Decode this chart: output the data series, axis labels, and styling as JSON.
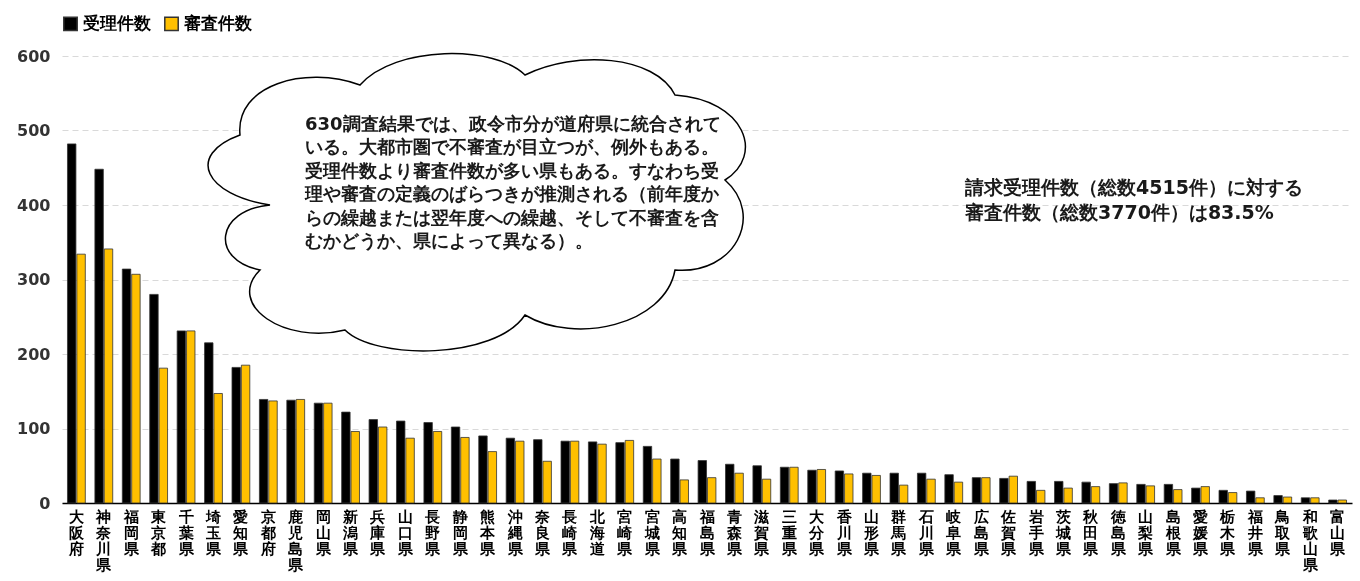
{
  "chart_data": {
    "type": "bar",
    "categories": [
      "大阪府",
      "神奈川県",
      "福岡県",
      "東京都",
      "千葉県",
      "埼玉県",
      "愛知県",
      "京都府",
      "鹿児島県",
      "岡山県",
      "新潟県",
      "兵庫県",
      "山口県",
      "長野県",
      "静岡県",
      "熊本県",
      "沖縄県",
      "奈良県",
      "長崎県",
      "北海道",
      "宮崎県",
      "宮城県",
      "高知県",
      "福島県",
      "青森県",
      "滋賀県",
      "三重県",
      "大分県",
      "香川県",
      "山形県",
      "群馬県",
      "石川県",
      "岐阜県",
      "広島県",
      "佐賀県",
      "岩手県",
      "茨城県",
      "秋田県",
      "徳島県",
      "山梨県",
      "島根県",
      "愛媛県",
      "栃木県",
      "福井県",
      "鳥取県",
      "和歌山県",
      "富山県"
    ],
    "series": [
      {
        "name": "受理件数",
        "color": "#000000",
        "values": [
          482,
          448,
          314,
          280,
          231,
          215,
          182,
          139,
          138,
          134,
          122,
          112,
          110,
          108,
          102,
          90,
          87,
          85,
          83,
          82,
          81,
          76,
          59,
          57,
          52,
          50,
          48,
          44,
          43,
          40,
          40,
          40,
          38,
          34,
          33,
          29,
          29,
          28,
          26,
          25,
          25,
          20,
          17,
          16,
          10,
          7,
          4
        ]
      },
      {
        "name": "審査件数",
        "color": "#ffc000",
        "values": [
          334,
          341,
          307,
          181,
          231,
          147,
          185,
          137,
          139,
          134,
          96,
          102,
          87,
          96,
          88,
          69,
          83,
          56,
          83,
          79,
          84,
          59,
          31,
          34,
          40,
          32,
          48,
          45,
          39,
          37,
          24,
          32,
          28,
          34,
          36,
          17,
          20,
          22,
          27,
          23,
          18,
          22,
          14,
          7,
          8,
          7,
          4
        ]
      }
    ],
    "ylim": [
      0,
      600
    ],
    "yticks": [
      0,
      100,
      200,
      300,
      400,
      500,
      600
    ],
    "grid": "y",
    "legend": "top",
    "annotations": [
      "630調査結果では、政令市分が道府県に統合されている。大都市圏で不審査が目立つが、例外もある。受理件数より審査件数が多い県もある。すなわち受理や審査の定義のばらつきが推測される（前年度からの繰越または翌年度への繰越、そして不審査を含むかどうか、県によって異なる）。",
      "請求受理件数（総数4515件）に対する審査件数（総数3770件）は83.5%"
    ]
  }
}
